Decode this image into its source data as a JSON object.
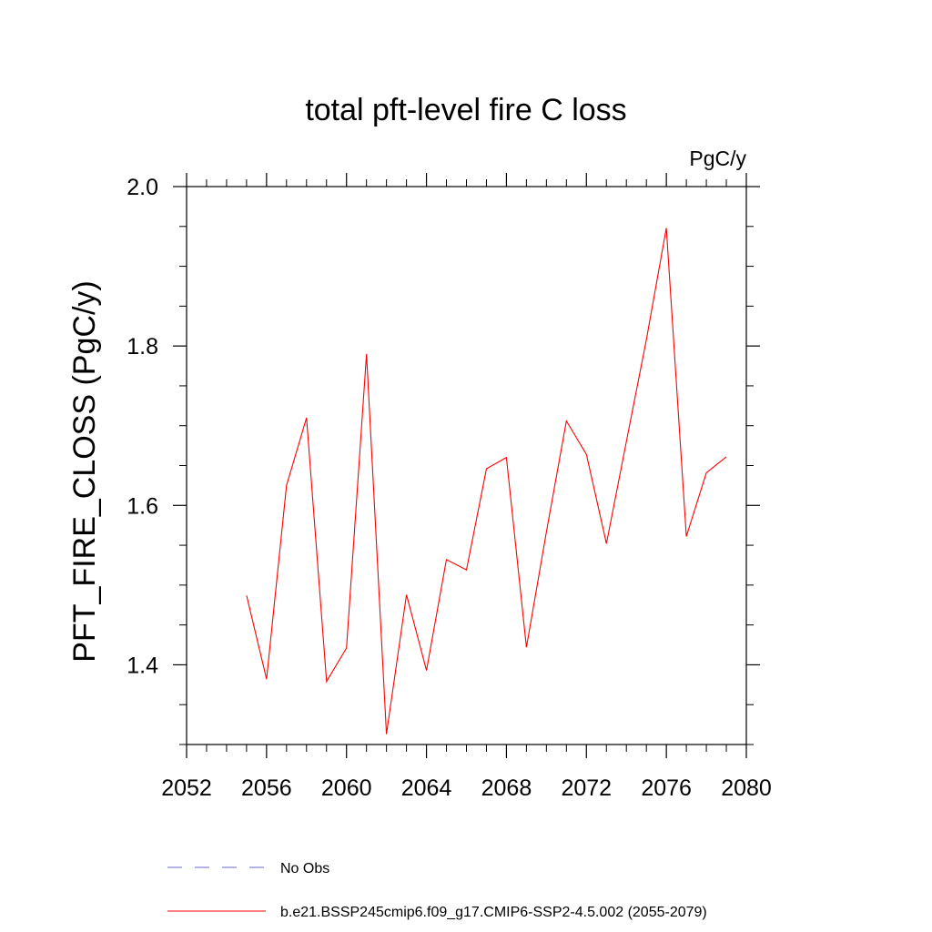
{
  "chart_data": {
    "type": "line",
    "title": "total pft-level fire C loss",
    "units_label": "PgC/y",
    "xlabel": "",
    "ylabel": "PFT_FIRE_CLOSS  (PgC/y)",
    "xlim": [
      2052,
      2080
    ],
    "ylim": [
      1.3,
      2.0
    ],
    "x_ticks": [
      2052,
      2056,
      2060,
      2064,
      2068,
      2072,
      2076,
      2080
    ],
    "x_tick_labels": [
      "2052",
      "2056",
      "2060",
      "2064",
      "2068",
      "2072",
      "2076",
      "2080"
    ],
    "y_ticks": [
      1.4,
      1.6,
      1.8,
      2.0
    ],
    "y_tick_labels": [
      "1.4",
      "1.6",
      "1.8",
      "2.0"
    ],
    "y_minor_step": 0.05,
    "x_minor_step": 1,
    "grid": false,
    "legend_placement": "bottom",
    "series": [
      {
        "name": "b.e21.BSSP245cmip6.f09_g17.CMIP6-SSP2-4.5.002 (2055-2079)",
        "color": "#ff0000",
        "style": "solid",
        "x": [
          2055,
          2056,
          2057,
          2058,
          2059,
          2060,
          2061,
          2062,
          2063,
          2064,
          2065,
          2066,
          2067,
          2068,
          2069,
          2070,
          2071,
          2072,
          2073,
          2074,
          2075,
          2076,
          2077,
          2078,
          2079
        ],
        "y": [
          1.487,
          1.382,
          1.625,
          1.71,
          1.379,
          1.421,
          1.79,
          1.313,
          1.488,
          1.393,
          1.532,
          1.519,
          1.646,
          1.66,
          1.422,
          1.567,
          1.706,
          1.664,
          1.552,
          1.68,
          1.808,
          1.948,
          1.561,
          1.641,
          1.661
        ]
      }
    ],
    "legend": [
      {
        "label": "No Obs",
        "color": "#6666cc",
        "style": "dashed"
      },
      {
        "label": "b.e21.BSSP245cmip6.f09_g17.CMIP6-SSP2-4.5.002 (2055-2079)",
        "color": "#ff0000",
        "style": "solid"
      }
    ]
  }
}
